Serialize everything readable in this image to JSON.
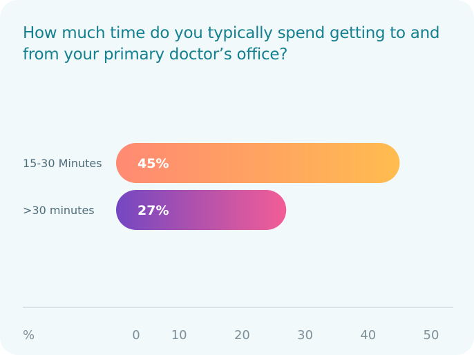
{
  "chart_data": {
    "type": "bar",
    "orientation": "horizontal",
    "title": "How much time do you typically spend getting to and from your primary doctor’s office?",
    "categories": [
      "15-30 Minutes",
      ">30 minutes"
    ],
    "values": [
      45,
      27
    ],
    "value_labels": [
      "45%",
      "27%"
    ],
    "xlabel": "%",
    "xlim": [
      0,
      50
    ],
    "x_ticks": [
      0,
      10,
      20,
      30,
      40,
      50
    ],
    "x_tick_labels": [
      "0",
      "10",
      "20",
      "30",
      "40",
      "50"
    ],
    "grid": false,
    "legend": "none",
    "bar_gradients": [
      [
        "#ff8a73",
        "#ffbc4f"
      ],
      [
        "#7447c2",
        "#f35d96"
      ]
    ]
  },
  "colors": {
    "card_background": "#f1f9fb",
    "title": "#15808f",
    "axis_line": "#d4dee2",
    "axis_text": "#7d8f98",
    "category_text": "#4e6b78"
  }
}
